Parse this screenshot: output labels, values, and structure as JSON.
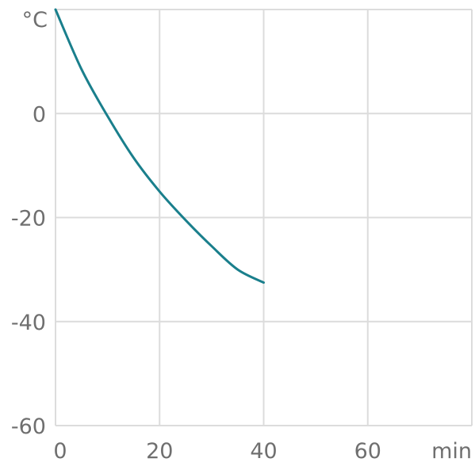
{
  "chart_data": {
    "type": "line",
    "title": "",
    "xlabel": "min",
    "ylabel": "°C",
    "xlim": [
      0,
      80
    ],
    "ylim": [
      -60,
      20
    ],
    "x_ticks": [
      0,
      20,
      40,
      60
    ],
    "x_tick_labels": [
      "0",
      "20",
      "40",
      "60"
    ],
    "y_ticks": [
      -60,
      -40,
      -20,
      0
    ],
    "y_tick_labels": [
      "-60",
      "-40",
      "-20",
      "0"
    ],
    "grid": true,
    "legend": "none",
    "line_color": "#1a7f8c",
    "series": [
      {
        "x": [
          0,
          5,
          10,
          15,
          20,
          25,
          30,
          35,
          40
        ],
        "y": [
          20,
          8.5,
          -0.5,
          -8.5,
          -15,
          -20.5,
          -25.5,
          -30,
          -32.5
        ]
      }
    ]
  }
}
